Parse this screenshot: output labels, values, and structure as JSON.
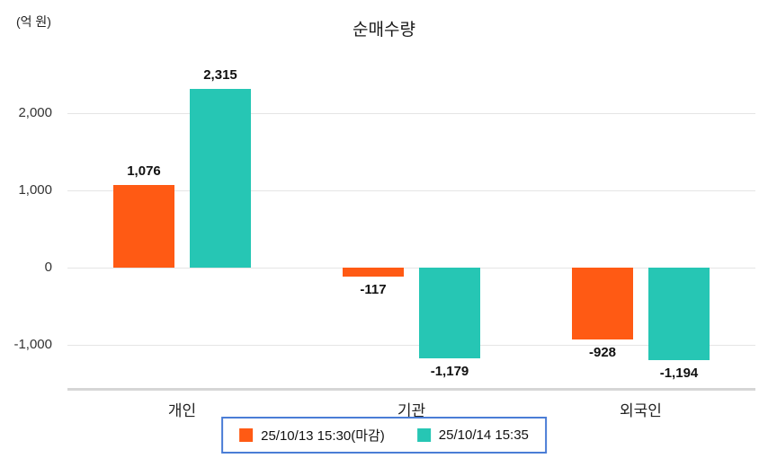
{
  "header": {
    "unit_label": "(억 원)",
    "title": "순매수량"
  },
  "chart_data": {
    "type": "bar",
    "title": "순매수량",
    "ylabel": "(억 원)",
    "categories": [
      "개인",
      "기관",
      "외국인"
    ],
    "series": [
      {
        "name": "25/10/13 15:30(마감)",
        "color": "#ff5a14",
        "values": [
          1076,
          -117,
          -928
        ]
      },
      {
        "name": "25/10/14 15:35",
        "color": "#26c6b4",
        "values": [
          2315,
          -1179,
          -1194
        ]
      }
    ],
    "value_labels": [
      [
        "1,076",
        "-117",
        "-928"
      ],
      [
        "2,315",
        "-1,179",
        "-1,194"
      ]
    ],
    "yticks": [
      2000,
      1000,
      0,
      -1000
    ],
    "ytick_labels": [
      "2,000",
      "1,000",
      "0",
      "-1,000"
    ],
    "ylim": [
      -1560,
      2830
    ],
    "grid": true,
    "legend_position": "bottom",
    "colors": {
      "grid": "#e5e5e5",
      "axis": "#d6d6d6",
      "legend_border": "#4a7dd6"
    }
  }
}
